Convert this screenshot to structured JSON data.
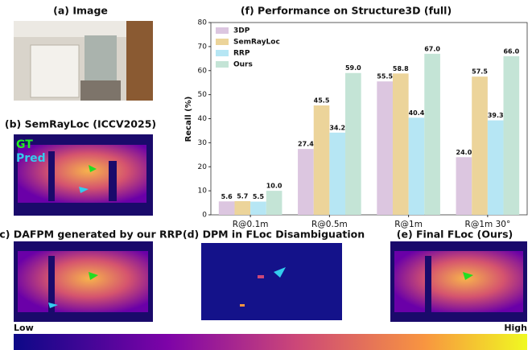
{
  "panels": {
    "a": "(a) Image",
    "b": "(b) SemRayLoc (ICCV2025)",
    "b_gt": "GT",
    "b_pred": "Pred",
    "c": "(c) DAFPM generated by our RRP",
    "d": "(d) DPM in FLoc Disambiguation",
    "e": "(e) Final FLoc (Ours)"
  },
  "colorbar": {
    "low": "Low",
    "high": "High"
  },
  "chart_data": {
    "type": "bar",
    "title": "(f) Performance on Structure3D (full)",
    "y_label": "Recall (%)",
    "categories": [
      "R@0.1m",
      "R@0.5m",
      "R@1m",
      "R@1m 30°"
    ],
    "series": [
      {
        "name": "3DP",
        "color": "#dcc6e0",
        "values": [
          5.6,
          27.4,
          55.5,
          24.0
        ],
        "value_labels": [
          "5.6",
          "27.4",
          "55.5",
          "24.0"
        ]
      },
      {
        "name": "SemRayLoc",
        "color": "#ecd49a",
        "values": [
          5.7,
          45.5,
          58.8,
          57.5
        ],
        "value_labels": [
          "5.7",
          "45.5",
          "58.8",
          "57.5"
        ]
      },
      {
        "name": "RRP",
        "color": "#b6e6f4",
        "values": [
          5.5,
          34.2,
          40.4,
          39.3
        ],
        "value_labels": [
          "5.5",
          "34.2",
          "40.4",
          "39.3"
        ]
      },
      {
        "name": "Ours",
        "color": "#c4e4d6",
        "values": [
          10.0,
          59.0,
          67.0,
          66.0
        ],
        "value_labels": [
          "10.0",
          "59.0",
          "67.0",
          "66.0"
        ]
      }
    ],
    "ylim": [
      0,
      80
    ],
    "yticks": [
      0,
      10,
      20,
      30,
      40,
      50,
      60,
      70,
      80
    ],
    "grid": false,
    "legend": "upper-left"
  }
}
